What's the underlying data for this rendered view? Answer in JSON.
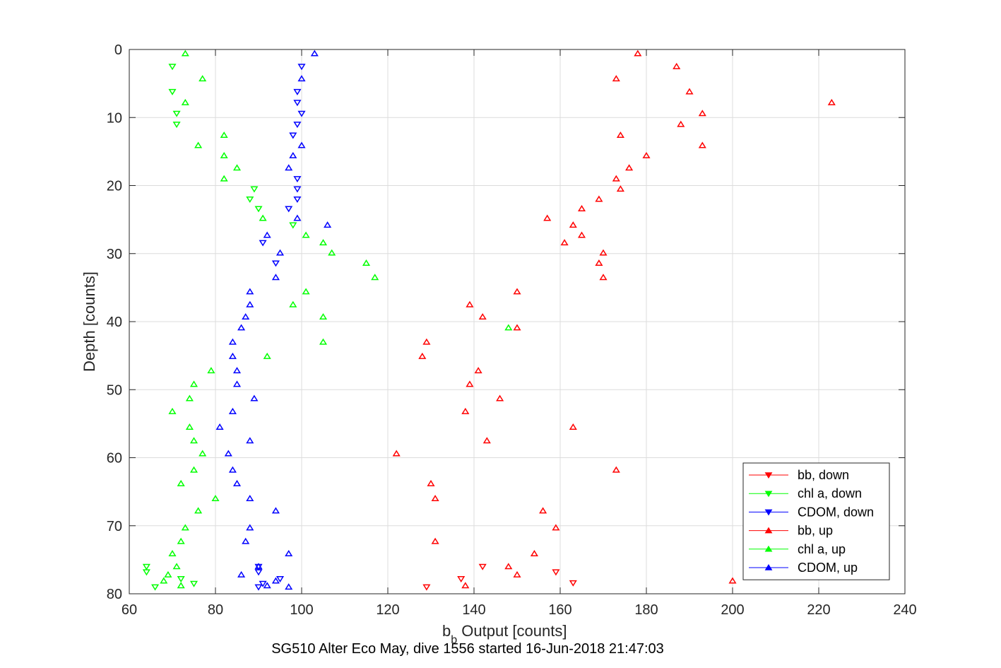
{
  "chart_data": {
    "type": "scatter",
    "title": "SG510 Alter Eco May, dive 1556 started 16-Jun-2018 21:47:03",
    "xlabel_main": "b",
    "xlabel_sub": "b",
    "xlabel_rest": " Output [counts]",
    "ylabel": "Depth [counts]",
    "xlim": [
      60,
      240
    ],
    "ylim": [
      0,
      80
    ],
    "y_reversed": true,
    "grid": true,
    "xticks": [
      60,
      80,
      100,
      120,
      140,
      160,
      180,
      200,
      220,
      240
    ],
    "yticks": [
      0,
      10,
      20,
      30,
      40,
      50,
      60,
      70,
      80
    ],
    "legend_position": "bottom-right",
    "series": [
      {
        "name": "bb, down",
        "color": "#ff0000",
        "marker": "triangle-down",
        "points": [
          [
            129,
            79
          ],
          [
            137,
            77.8
          ],
          [
            142,
            76
          ],
          [
            159,
            76.8
          ],
          [
            163,
            78.4
          ]
        ]
      },
      {
        "name": "chl a, down",
        "color": "#00ff00",
        "marker": "triangle-down",
        "points": [
          [
            70,
            2.5
          ],
          [
            70,
            6.2
          ],
          [
            71,
            9.4
          ],
          [
            71,
            11
          ],
          [
            89,
            20.5
          ],
          [
            88,
            22
          ],
          [
            90,
            23.4
          ],
          [
            98,
            25.8
          ],
          [
            64,
            76
          ],
          [
            64,
            76.8
          ],
          [
            72,
            77.8
          ],
          [
            75,
            78.5
          ],
          [
            66,
            79
          ]
        ]
      },
      {
        "name": "CDOM, down",
        "color": "#0000ff",
        "marker": "triangle-down",
        "points": [
          [
            100,
            2.5
          ],
          [
            99,
            6.2
          ],
          [
            99,
            7.8
          ],
          [
            100,
            9.4
          ],
          [
            99,
            11
          ],
          [
            98,
            12.6
          ],
          [
            99,
            19
          ],
          [
            99,
            20.5
          ],
          [
            99,
            22
          ],
          [
            97,
            23.4
          ],
          [
            91,
            28.4
          ],
          [
            94,
            31.4
          ],
          [
            90,
            76
          ],
          [
            90,
            76.8
          ],
          [
            95,
            77.8
          ],
          [
            91,
            78.5
          ],
          [
            90,
            79
          ]
        ]
      },
      {
        "name": "bb, up",
        "color": "#ff0000",
        "marker": "triangle-up",
        "points": [
          [
            178,
            0.6
          ],
          [
            187,
            2.5
          ],
          [
            173,
            4.3
          ],
          [
            190,
            6.2
          ],
          [
            223,
            7.8
          ],
          [
            193,
            9.4
          ],
          [
            188,
            11
          ],
          [
            174,
            12.6
          ],
          [
            193,
            14.1
          ],
          [
            180,
            15.6
          ],
          [
            176,
            17.4
          ],
          [
            173,
            19
          ],
          [
            174,
            20.5
          ],
          [
            169,
            22
          ],
          [
            165,
            23.4
          ],
          [
            157,
            24.8
          ],
          [
            163,
            25.8
          ],
          [
            165,
            27.3
          ],
          [
            161,
            28.4
          ],
          [
            170,
            29.9
          ],
          [
            169,
            31.4
          ],
          [
            170,
            33.5
          ],
          [
            150,
            35.6
          ],
          [
            139,
            37.5
          ],
          [
            142,
            39.3
          ],
          [
            150,
            40.9
          ],
          [
            129,
            43
          ],
          [
            128,
            45.1
          ],
          [
            141,
            47.2
          ],
          [
            139,
            49.2
          ],
          [
            146,
            51.3
          ],
          [
            138,
            53.2
          ],
          [
            163,
            55.5
          ],
          [
            143,
            57.5
          ],
          [
            122,
            59.4
          ],
          [
            173,
            61.8
          ],
          [
            130,
            63.8
          ],
          [
            131,
            66
          ],
          [
            156,
            67.8
          ],
          [
            159,
            70.3
          ],
          [
            131,
            72.3
          ],
          [
            154,
            74.1
          ],
          [
            148,
            76
          ],
          [
            150,
            77.2
          ],
          [
            200,
            78.1
          ],
          [
            138,
            78.8
          ]
        ]
      },
      {
        "name": "chl a, up",
        "color": "#00ff00",
        "marker": "triangle-up",
        "points": [
          [
            73,
            0.6
          ],
          [
            77,
            4.3
          ],
          [
            73,
            7.8
          ],
          [
            82,
            12.6
          ],
          [
            76,
            14.1
          ],
          [
            82,
            15.6
          ],
          [
            85,
            17.4
          ],
          [
            82,
            19
          ],
          [
            91,
            24.8
          ],
          [
            101,
            27.3
          ],
          [
            105,
            28.4
          ],
          [
            107,
            29.9
          ],
          [
            115,
            31.4
          ],
          [
            117,
            33.5
          ],
          [
            101,
            35.6
          ],
          [
            98,
            37.5
          ],
          [
            105,
            39.3
          ],
          [
            148,
            40.9
          ],
          [
            105,
            43
          ],
          [
            92,
            45.1
          ],
          [
            79,
            47.2
          ],
          [
            75,
            49.2
          ],
          [
            74,
            51.3
          ],
          [
            70,
            53.2
          ],
          [
            74,
            55.5
          ],
          [
            75,
            57.5
          ],
          [
            77,
            59.4
          ],
          [
            75,
            61.8
          ],
          [
            72,
            63.8
          ],
          [
            80,
            66
          ],
          [
            76,
            67.8
          ],
          [
            73,
            70.3
          ],
          [
            72,
            72.3
          ],
          [
            70,
            74.1
          ],
          [
            71,
            76
          ],
          [
            69,
            77.2
          ],
          [
            68,
            78.1
          ],
          [
            72,
            78.8
          ]
        ]
      },
      {
        "name": "CDOM, up",
        "color": "#0000ff",
        "marker": "triangle-up",
        "points": [
          [
            103,
            0.6
          ],
          [
            100,
            4.3
          ],
          [
            100,
            14.1
          ],
          [
            98,
            15.6
          ],
          [
            97,
            17.4
          ],
          [
            99,
            24.8
          ],
          [
            106,
            25.8
          ],
          [
            92,
            27.3
          ],
          [
            95,
            29.9
          ],
          [
            94,
            33.5
          ],
          [
            88,
            35.6
          ],
          [
            88,
            37.5
          ],
          [
            87,
            39.3
          ],
          [
            86,
            40.9
          ],
          [
            84,
            43
          ],
          [
            84,
            45.1
          ],
          [
            85,
            47.2
          ],
          [
            85,
            49.2
          ],
          [
            89,
            51.3
          ],
          [
            84,
            53.2
          ],
          [
            81,
            55.5
          ],
          [
            88,
            57.5
          ],
          [
            83,
            59.4
          ],
          [
            84,
            61.8
          ],
          [
            85,
            63.8
          ],
          [
            88,
            66
          ],
          [
            94,
            67.8
          ],
          [
            88,
            70.3
          ],
          [
            87,
            72.3
          ],
          [
            97,
            74.1
          ],
          [
            90,
            76
          ],
          [
            86,
            77.2
          ],
          [
            94,
            78.1
          ],
          [
            92,
            78.8
          ],
          [
            97,
            79
          ]
        ]
      }
    ]
  }
}
